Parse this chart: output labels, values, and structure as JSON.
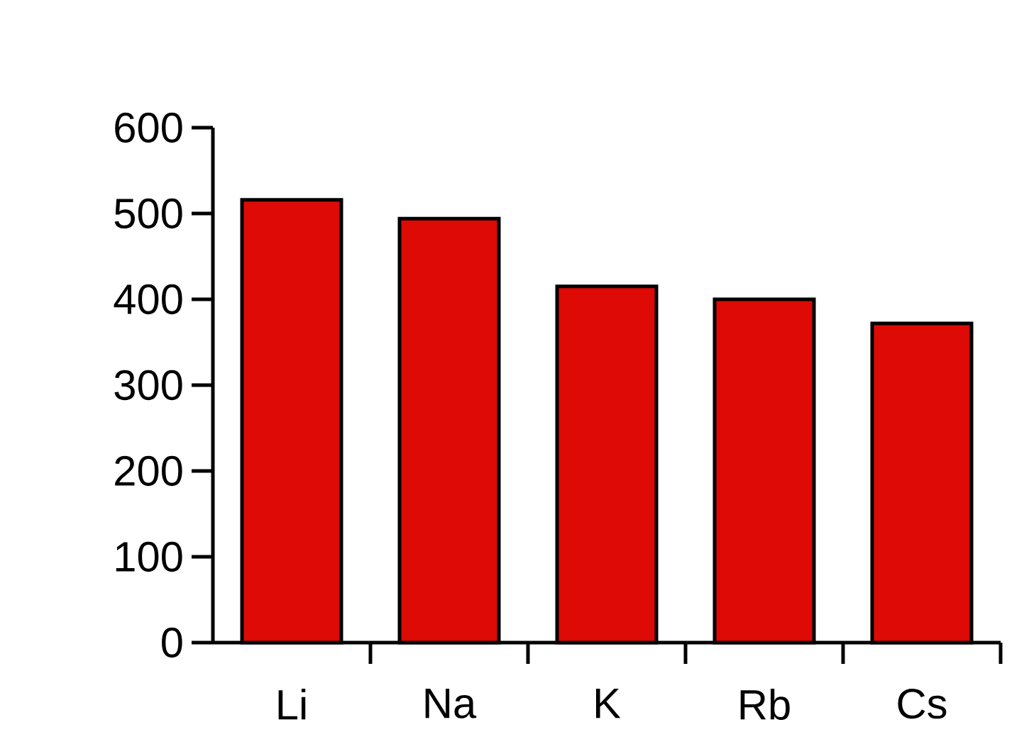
{
  "chart_data": {
    "type": "bar",
    "categories": [
      "Li",
      "Na",
      "K",
      "Rb",
      "Cs"
    ],
    "values": [
      516,
      494,
      415,
      400,
      372
    ],
    "color": "#dd0a05",
    "ylim": [
      0,
      600
    ],
    "yticks": [
      0,
      100,
      200,
      300,
      400,
      500,
      600
    ]
  }
}
